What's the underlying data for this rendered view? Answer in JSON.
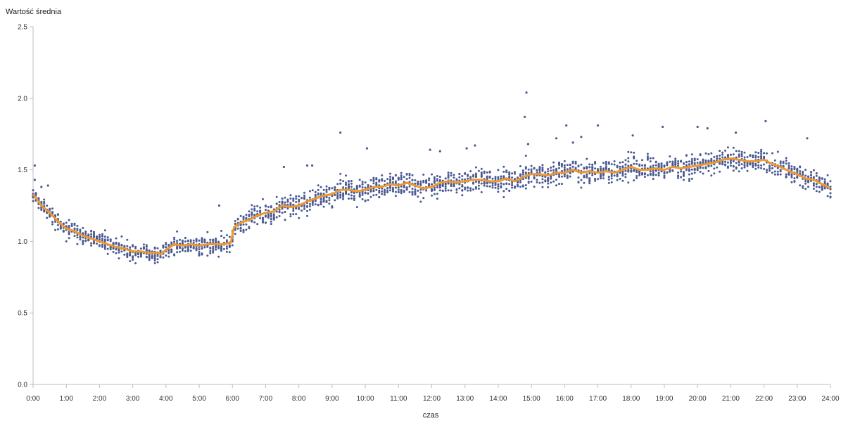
{
  "chart_data": {
    "type": "scatter",
    "title": "",
    "ylabel": "Wartość średnia",
    "xlabel": "czas",
    "x_ticks": [
      "0:00",
      "1:00",
      "2:00",
      "3:00",
      "4:00",
      "5:00",
      "6:00",
      "7:00",
      "8:00",
      "9:00",
      "10:00",
      "11:00",
      "12:00",
      "13:00",
      "14:00",
      "15:00",
      "16:00",
      "17:00",
      "18:00",
      "19:00",
      "20:00",
      "21:00",
      "22:00",
      "23:00",
      "24:00"
    ],
    "y_ticks": [
      "0.0",
      "0.5",
      "1.0",
      "1.5",
      "2.0",
      "2.5"
    ],
    "xlim": [
      0,
      24
    ],
    "ylim": [
      0,
      2.5
    ],
    "grid": false,
    "legend": "none",
    "colors": {
      "scatter": "#4a5a94",
      "mean_line": "#f0982d",
      "axis": "#bdbdbd"
    },
    "series": [
      {
        "kind": "line",
        "x": [
          0,
          0.25,
          0.5,
          0.75,
          1,
          1.25,
          1.5,
          1.75,
          2,
          2.25,
          2.5,
          2.75,
          3,
          3.25,
          3.5,
          3.75,
          3.85,
          4,
          4.25,
          4.5,
          4.75,
          5,
          5.25,
          5.5,
          5.75,
          5.95,
          6.05,
          6.25,
          6.5,
          6.75,
          7,
          7.25,
          7.5,
          7.75,
          8,
          8.25,
          8.5,
          8.75,
          9,
          9.25,
          9.5,
          9.75,
          10,
          10.25,
          10.5,
          10.75,
          11,
          11.25,
          11.5,
          11.75,
          12,
          12.25,
          12.5,
          12.75,
          13,
          13.25,
          13.5,
          13.75,
          14,
          14.25,
          14.5,
          14.75,
          15,
          15.25,
          15.5,
          15.75,
          16,
          16.25,
          16.5,
          16.75,
          17,
          17.25,
          17.5,
          17.75,
          18,
          18.25,
          18.5,
          18.75,
          19,
          19.25,
          19.5,
          19.75,
          20,
          20.25,
          20.5,
          20.75,
          21,
          21.25,
          21.5,
          21.75,
          22,
          22.25,
          22.5,
          22.75,
          23,
          23.25,
          23.5,
          23.75,
          24
        ],
        "y": [
          1.33,
          1.25,
          1.2,
          1.14,
          1.09,
          1.07,
          1.04,
          1.02,
          1.0,
          0.98,
          0.96,
          0.95,
          0.93,
          0.93,
          0.92,
          0.92,
          0.91,
          0.94,
          0.98,
          0.97,
          0.98,
          0.97,
          0.98,
          0.98,
          0.98,
          0.99,
          1.1,
          1.13,
          1.15,
          1.18,
          1.2,
          1.21,
          1.25,
          1.24,
          1.25,
          1.28,
          1.3,
          1.32,
          1.33,
          1.36,
          1.36,
          1.35,
          1.36,
          1.38,
          1.38,
          1.4,
          1.39,
          1.41,
          1.39,
          1.37,
          1.38,
          1.41,
          1.42,
          1.41,
          1.42,
          1.43,
          1.43,
          1.42,
          1.42,
          1.44,
          1.42,
          1.45,
          1.47,
          1.47,
          1.46,
          1.48,
          1.48,
          1.5,
          1.48,
          1.49,
          1.48,
          1.49,
          1.48,
          1.5,
          1.52,
          1.5,
          1.5,
          1.51,
          1.5,
          1.52,
          1.51,
          1.52,
          1.53,
          1.54,
          1.55,
          1.57,
          1.58,
          1.57,
          1.56,
          1.56,
          1.57,
          1.54,
          1.52,
          1.49,
          1.47,
          1.44,
          1.43,
          1.4,
          1.37
        ]
      },
      {
        "kind": "scatter",
        "x": [
          14.85,
          14.8,
          16.05,
          17.0,
          18.95,
          20.0,
          20.3,
          22.05,
          9.25,
          10.05,
          7.55,
          8.25,
          8.4,
          5.6,
          0.05,
          0.05,
          23.3,
          18.05,
          0.25,
          0.45,
          12.25,
          13.05,
          13.3,
          11.95,
          15.75,
          16.5,
          21.15,
          14.9,
          16.25
        ],
        "y": [
          2.04,
          1.87,
          1.81,
          1.81,
          1.8,
          1.8,
          1.79,
          1.84,
          1.76,
          1.65,
          1.52,
          1.53,
          1.53,
          1.25,
          1.53,
          1.43,
          1.72,
          1.74,
          1.38,
          1.39,
          1.63,
          1.65,
          1.67,
          1.64,
          1.72,
          1.73,
          1.76,
          1.68,
          1.69
        ]
      }
    ]
  }
}
